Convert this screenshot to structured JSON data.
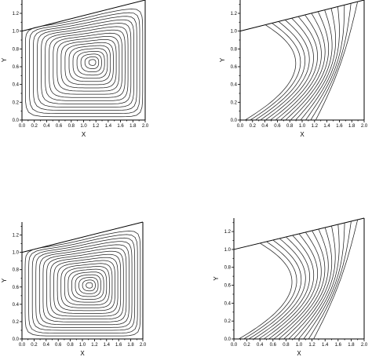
{
  "chart_data": [
    {
      "type": "contour",
      "variant": "streamlines",
      "xlabel": "X",
      "ylabel": "Y",
      "xlim": [
        0.0,
        2.0
      ],
      "ylim": [
        0.0,
        1.35
      ],
      "xticks": [
        "0.0",
        "0.2",
        "0.4",
        "0.6",
        "0.8",
        "1.0",
        "1.2",
        "1.4",
        "1.6",
        "1.8",
        "2.0"
      ],
      "yticks": [
        "0.0",
        "0.2",
        "0.4",
        "0.6",
        "0.8",
        "1.0",
        "1.2"
      ],
      "top_boundary": [
        [
          0.0,
          1.0
        ],
        [
          2.0,
          1.35
        ]
      ],
      "vortex_center": [
        1.15,
        0.65
      ],
      "levels": 17
    },
    {
      "type": "contour",
      "variant": "isotherms",
      "xlabel": "X",
      "ylabel": "Y",
      "xlim": [
        0.0,
        2.0
      ],
      "ylim": [
        0.0,
        1.35
      ],
      "xticks": [
        "0.0",
        "0.2",
        "0.4",
        "0.6",
        "0.8",
        "1.0",
        "1.2",
        "1.4",
        "1.6",
        "1.8",
        "2.0"
      ],
      "yticks": [
        "0.0",
        "0.2",
        "0.4",
        "0.6",
        "0.8",
        "1.0",
        "1.2"
      ],
      "top_boundary": [
        [
          0.0,
          1.0
        ],
        [
          2.0,
          1.35
        ]
      ],
      "levels": 15
    },
    {
      "type": "contour",
      "variant": "streamlines",
      "xlabel": "X",
      "ylabel": "Y",
      "xlim": [
        0.0,
        2.0
      ],
      "ylim": [
        0.0,
        1.35
      ],
      "xticks": [
        "0.0",
        "0.2",
        "0.4",
        "0.6",
        "0.8",
        "1.0",
        "1.2",
        "1.4",
        "1.6",
        "1.8",
        "2.0"
      ],
      "yticks": [
        "0.0",
        "0.2",
        "0.4",
        "0.6",
        "0.8",
        "1.0",
        "1.2"
      ],
      "top_boundary": [
        [
          0.0,
          1.0
        ],
        [
          2.0,
          1.35
        ]
      ],
      "vortex_center": [
        1.12,
        0.62
      ],
      "levels": 18
    },
    {
      "type": "contour",
      "variant": "isotherms",
      "xlabel": "X",
      "ylabel": "Y",
      "xlim": [
        0.0,
        2.0
      ],
      "ylim": [
        0.0,
        1.35
      ],
      "xticks": [
        "0.0",
        "0.2",
        "0.4",
        "0.6",
        "0.8",
        "1.0",
        "1.2",
        "1.4",
        "1.6",
        "1.8",
        "2.0"
      ],
      "yticks": [
        "0.0",
        "0.2",
        "0.4",
        "0.6",
        "0.8",
        "1.0",
        "1.2"
      ],
      "top_boundary": [
        [
          0.0,
          1.0
        ],
        [
          2.0,
          1.35
        ]
      ],
      "levels": 16
    }
  ]
}
